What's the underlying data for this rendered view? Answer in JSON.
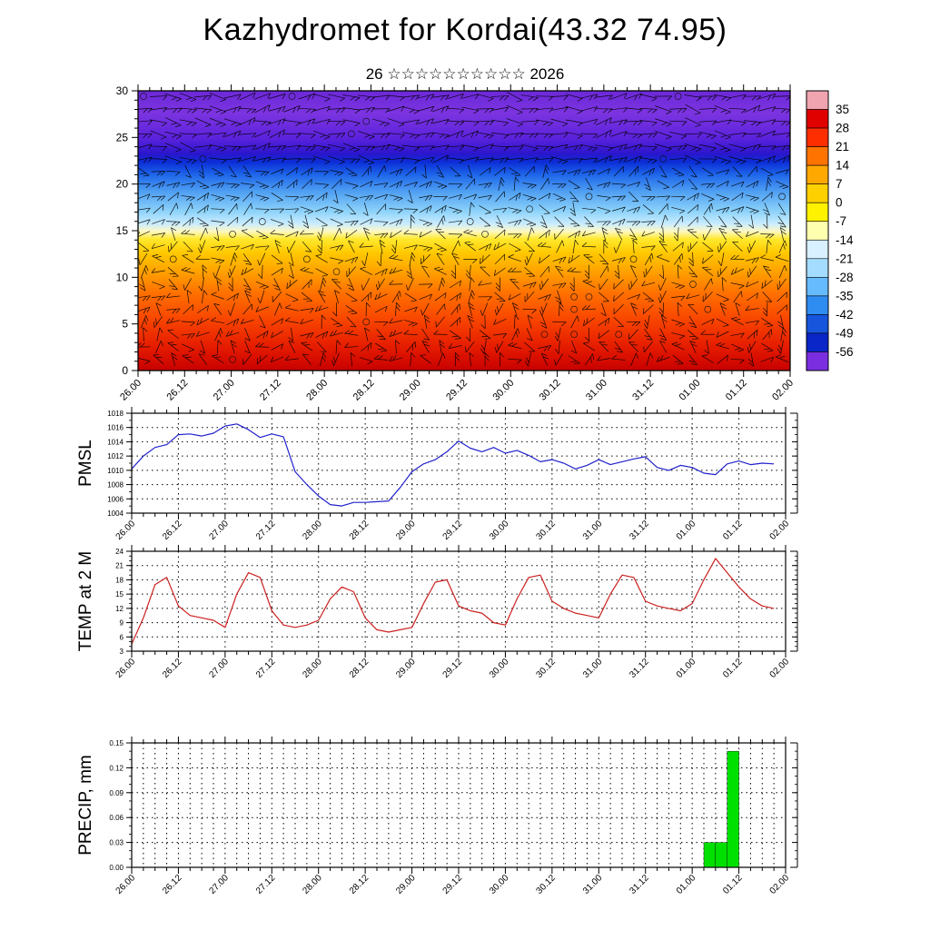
{
  "title": "Kazhydromet for Kordai(43.32 74.95)",
  "subtitle": "26 ☆☆☆☆☆☆☆☆☆☆ 2026",
  "time_axis": {
    "labels": [
      "26.00",
      "26.12",
      "27.00",
      "27.12",
      "28.00",
      "28.12",
      "29.00",
      "29.12",
      "30.00",
      "30.12",
      "31.00",
      "31.12",
      "01.00",
      "01.12",
      "02.00"
    ],
    "hours": [
      0,
      12,
      24,
      36,
      48,
      60,
      72,
      84,
      96,
      108,
      120,
      132,
      144,
      156,
      168
    ],
    "minor_step_hours": 3,
    "range_hours": [
      0,
      168
    ]
  },
  "chart_data": [
    {
      "type": "heatmap",
      "name": "temperature-cross-section",
      "description": "time-height temperature cross-section with wind barbs",
      "ylim": [
        0,
        30
      ],
      "yticks": [
        0,
        5,
        10,
        15,
        20,
        25,
        30
      ],
      "yminor_step": 1,
      "overlay": "wind-barbs",
      "gradient_stops": [
        {
          "offset": 0.0,
          "color": "#6b28d8"
        },
        {
          "offset": 0.08,
          "color": "#7c34e0"
        },
        {
          "offset": 0.17,
          "color": "#5b22dc"
        },
        {
          "offset": 0.225,
          "color": "#2a16cc"
        },
        {
          "offset": 0.255,
          "color": "#0b2ed6"
        },
        {
          "offset": 0.3,
          "color": "#1e66ea"
        },
        {
          "offset": 0.36,
          "color": "#4f9ff2"
        },
        {
          "offset": 0.43,
          "color": "#8cd2fa"
        },
        {
          "offset": 0.475,
          "color": "#c9ecff"
        },
        {
          "offset": 0.502,
          "color": "#fdf8c4"
        },
        {
          "offset": 0.53,
          "color": "#ffe92e"
        },
        {
          "offset": 0.58,
          "color": "#ffc800"
        },
        {
          "offset": 0.645,
          "color": "#ffa200"
        },
        {
          "offset": 0.72,
          "color": "#ff7200"
        },
        {
          "offset": 0.82,
          "color": "#f84400"
        },
        {
          "offset": 0.92,
          "color": "#e41a00"
        },
        {
          "offset": 1.0,
          "color": "#c80000"
        }
      ],
      "colorbar": {
        "labels": [
          "35",
          "28",
          "21",
          "14",
          "7",
          "0",
          "-7",
          "-14",
          "-21",
          "-28",
          "-35",
          "-42",
          "-49",
          "-56"
        ],
        "colors": [
          "#f0a4b0",
          "#e00000",
          "#ff2e00",
          "#ff7300",
          "#ffa800",
          "#ffd000",
          "#fff200",
          "#ffffb0",
          "#d8f0ff",
          "#a4dcff",
          "#66bbff",
          "#2f8cf0",
          "#1655dc",
          "#0a26c8",
          "#7a2ee0"
        ]
      }
    },
    {
      "type": "line",
      "name": "pmsl",
      "label": "PMSL",
      "color": "#2020cc",
      "ylim": [
        1004,
        1018
      ],
      "ytick_step": 2,
      "yminor_step": 1,
      "vgrid_step_hours": 12,
      "t_start": 0,
      "t_step": 3,
      "values": [
        1010.2,
        1012.0,
        1013.2,
        1013.6,
        1015.0,
        1015.1,
        1014.8,
        1015.2,
        1016.2,
        1016.5,
        1015.7,
        1014.6,
        1015.1,
        1014.7,
        1009.8,
        1008.0,
        1006.4,
        1005.2,
        1005.0,
        1005.5,
        1005.5,
        1005.6,
        1005.7,
        1007.6,
        1009.8,
        1010.9,
        1011.5,
        1012.6,
        1014.1,
        1013.1,
        1012.6,
        1013.2,
        1012.4,
        1012.8,
        1012.1,
        1011.2,
        1011.5,
        1011.0,
        1010.2,
        1010.7,
        1011.5,
        1010.8,
        1011.2,
        1011.6,
        1011.9,
        1010.4,
        1010.0,
        1010.7,
        1010.4,
        1009.6,
        1009.4,
        1010.9,
        1011.3,
        1010.8,
        1011.0,
        1010.9
      ]
    },
    {
      "type": "line",
      "name": "temp-2m",
      "label": "TEMP at 2 M",
      "color": "#cc2020",
      "ylim": [
        3,
        24
      ],
      "ytick_step": 3,
      "yminor_step": 1,
      "vgrid_step_hours": 12,
      "t_start": 0,
      "t_step": 3,
      "values": [
        4.5,
        10.0,
        17.0,
        18.5,
        12.5,
        10.5,
        10.0,
        9.5,
        8.0,
        15.0,
        19.5,
        18.5,
        11.5,
        8.5,
        8.0,
        8.5,
        9.5,
        14.0,
        16.5,
        15.5,
        10.0,
        7.5,
        7.0,
        7.5,
        8.0,
        13.0,
        17.5,
        18.0,
        12.5,
        11.5,
        11.0,
        9.0,
        8.5,
        14.0,
        18.5,
        19.0,
        13.5,
        12.0,
        11.0,
        10.5,
        10.0,
        15.0,
        19.0,
        18.5,
        13.5,
        12.5,
        12.0,
        11.5,
        13.0,
        18.0,
        22.5,
        19.5,
        16.5,
        14.0,
        12.5,
        12.0
      ]
    },
    {
      "type": "bar",
      "name": "precip",
      "label": "PRECIP, mm",
      "color": "#00e000",
      "ylim": [
        0,
        0.15
      ],
      "ytick_step": 0.03,
      "yminor_step": 0.01,
      "vgrid_step_hours": 3,
      "bar_width_hours": 3,
      "bars": [
        {
          "t": 147,
          "v": 0.03
        },
        {
          "t": 150,
          "v": 0.03
        },
        {
          "t": 153,
          "v": 0.14
        }
      ]
    }
  ]
}
